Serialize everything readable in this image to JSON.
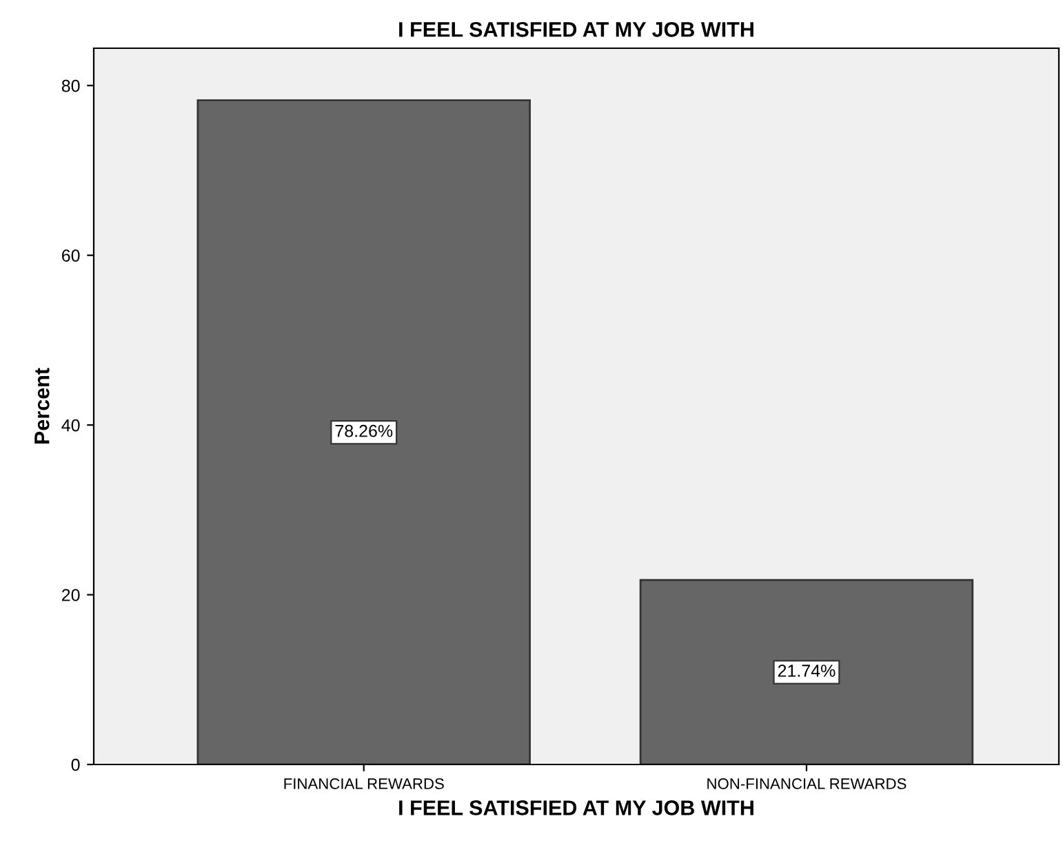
{
  "chart_data": {
    "type": "bar",
    "title": "I FEEL SATISFIED AT MY JOB WITH",
    "xlabel": "I FEEL SATISFIED AT MY JOB WITH",
    "ylabel": "Percent",
    "categories": [
      "FINANCIAL REWARDS",
      "NON-FINANCIAL REWARDS"
    ],
    "values": [
      78.26,
      21.74
    ],
    "value_labels": [
      "78.26%",
      "21.74%"
    ],
    "color": "#666666",
    "ylim": [
      0,
      84.4
    ],
    "yticks": [
      0,
      20,
      40,
      60,
      80
    ],
    "grid": false
  }
}
